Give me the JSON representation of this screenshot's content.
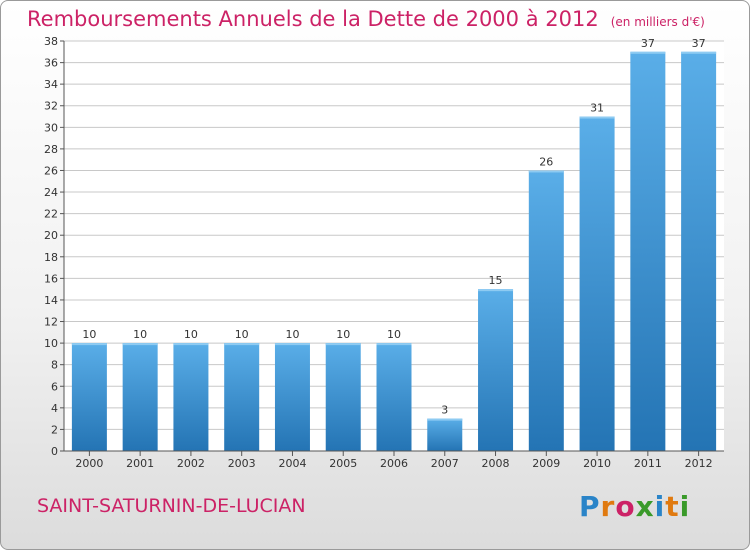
{
  "header": {
    "title": "Remboursements Annuels de la Dette de 2000 à 2012",
    "unit": "(en milliers d'€)"
  },
  "footer": {
    "commune": "SAINT-SATURNIN-DE-LUCIAN",
    "logo": {
      "letters": [
        "P",
        "r",
        "o",
        "x",
        "i",
        "t",
        "i"
      ],
      "colors": [
        "#2a84c8",
        "#e07a10",
        "#cc2266",
        "#3a9a2a",
        "#2a84c8",
        "#e07a10",
        "#3a9a2a"
      ]
    }
  },
  "chart_data": {
    "type": "bar",
    "categories": [
      "2000",
      "2001",
      "2002",
      "2003",
      "2004",
      "2005",
      "2006",
      "2007",
      "2008",
      "2009",
      "2010",
      "2011",
      "2012"
    ],
    "values": [
      10,
      10,
      10,
      10,
      10,
      10,
      10,
      3,
      15,
      26,
      31,
      37,
      37
    ],
    "ylim": [
      0,
      38
    ],
    "yticks": [
      0,
      2,
      4,
      6,
      8,
      10,
      12,
      14,
      16,
      18,
      20,
      22,
      24,
      26,
      28,
      30,
      32,
      34,
      36,
      38
    ],
    "grid": true,
    "colors": {
      "bar_top": "#5aaee8",
      "bar_bottom": "#2474b4",
      "grid": "#c8c8c8",
      "axis": "#555555"
    }
  }
}
